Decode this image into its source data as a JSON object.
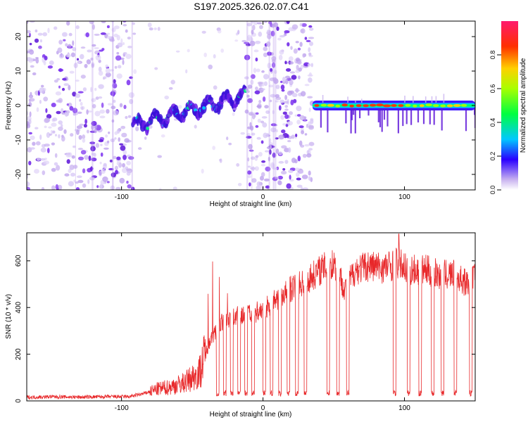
{
  "title": "S197.2025.326.02.07.C41",
  "colors": {
    "snr_line": "#e8282a",
    "spec_low": "#c9b3f0",
    "spec_mid": "#6a1fe6",
    "spec_hi": "#ff2020"
  },
  "chart_data": [
    {
      "type": "heatmap",
      "name": "spectrogram",
      "xlabel": "Height of straight line (km)",
      "ylabel": "Frequency (Hz)",
      "xlim": [
        -167,
        150
      ],
      "ylim": [
        -24.5,
        24.5
      ],
      "xticks": [
        -100,
        0,
        100
      ],
      "xtick_labels": [
        "-100",
        "0",
        "100"
      ],
      "yticks": [
        -20,
        -10,
        0,
        10,
        20
      ],
      "ytick_labels": [
        "-20",
        "-10",
        "0",
        "10",
        "20"
      ],
      "colorbar": {
        "label": "Normalized spectral amplitude",
        "range": [
          0,
          1
        ],
        "ticks": [
          0.0,
          0.2,
          0.4,
          0.6,
          0.8
        ],
        "tick_labels": [
          "0.0",
          "0.2",
          "0.4",
          "0.6",
          "0.8"
        ]
      },
      "segments": [
        {
          "x_range": [
            -167,
            -92
          ],
          "description_level": "noise",
          "amplitude": 0.15
        },
        {
          "x_range": [
            -92,
            -12
          ],
          "tone_freq_start": -6,
          "tone_freq_end": 3,
          "amplitude": 0.35
        },
        {
          "x_range": [
            -12,
            35
          ],
          "description_level": "noise",
          "amplitude": 0.2
        },
        {
          "x_range": [
            35,
            150
          ],
          "tone_freq": 0,
          "amplitude": 0.9
        }
      ]
    },
    {
      "type": "line",
      "name": "snr",
      "xlabel": "Height of straight line (km)",
      "ylabel": "SNR (10 * v/v)",
      "xlim": [
        -167,
        150
      ],
      "ylim": [
        0,
        720
      ],
      "xticks": [
        -100,
        0,
        100
      ],
      "xtick_labels": [
        "-100",
        "0",
        "100"
      ],
      "yticks": [
        0,
        200,
        400,
        600
      ],
      "ytick_labels": [
        "0",
        "200",
        "400",
        "600"
      ],
      "series": [
        {
          "name": "SNR",
          "x": [
            -167,
            -150,
            -130,
            -110,
            -95,
            -85,
            -75,
            -65,
            -55,
            -45,
            -38,
            -30,
            -20,
            -10,
            0,
            10,
            20,
            30,
            40,
            50,
            58,
            65,
            75,
            85,
            95,
            105,
            115,
            125,
            135,
            145,
            150
          ],
          "y": [
            15,
            18,
            16,
            18,
            18,
            30,
            50,
            60,
            80,
            120,
            250,
            330,
            360,
            370,
            390,
            440,
            480,
            510,
            560,
            590,
            480,
            560,
            580,
            570,
            590,
            560,
            560,
            540,
            540,
            500,
            540
          ],
          "dropouts": [
            -32,
            -27,
            -22,
            -17,
            -12,
            -7,
            1,
            6,
            12,
            18,
            24,
            30,
            46,
            53,
            60,
            93,
            103,
            111,
            120,
            127,
            136,
            147
          ]
        }
      ]
    }
  ]
}
